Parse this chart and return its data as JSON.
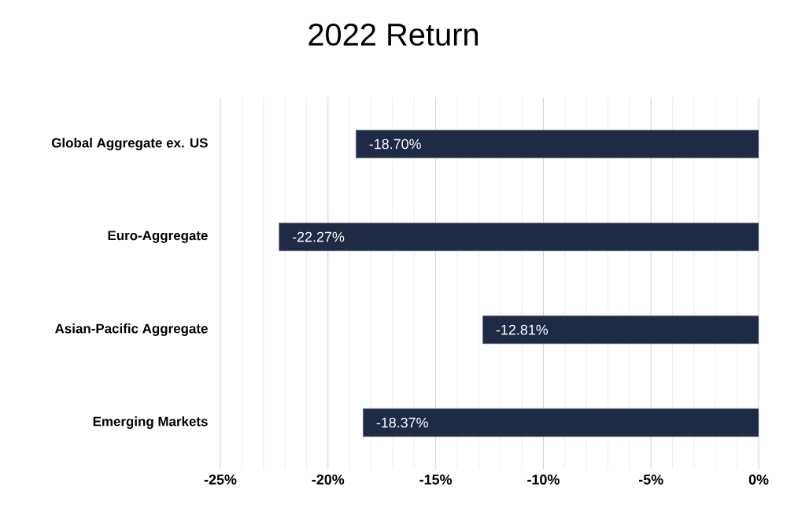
{
  "chart_data": {
    "type": "bar",
    "orientation": "horizontal",
    "title": "2022 Return",
    "categories": [
      "Global Aggregate ex. US",
      "Euro-Aggregate",
      "Asian-Pacific Aggregate",
      "Emerging Markets"
    ],
    "values": [
      -18.7,
      -22.27,
      -12.81,
      -18.37
    ],
    "value_labels": [
      "-18.70%",
      "-22.27%",
      "-12.81%",
      "-18.37%"
    ],
    "color": "#1f2a44",
    "xlim": [
      -25,
      0
    ],
    "xticks": [
      {
        "value": -25,
        "label": "-25%"
      },
      {
        "value": -20,
        "label": "-20%"
      },
      {
        "value": -15,
        "label": "-15%"
      },
      {
        "value": -10,
        "label": "-10%"
      },
      {
        "value": -5,
        "label": "-5%"
      },
      {
        "value": 0,
        "label": "0%"
      }
    ],
    "grid": "x"
  }
}
